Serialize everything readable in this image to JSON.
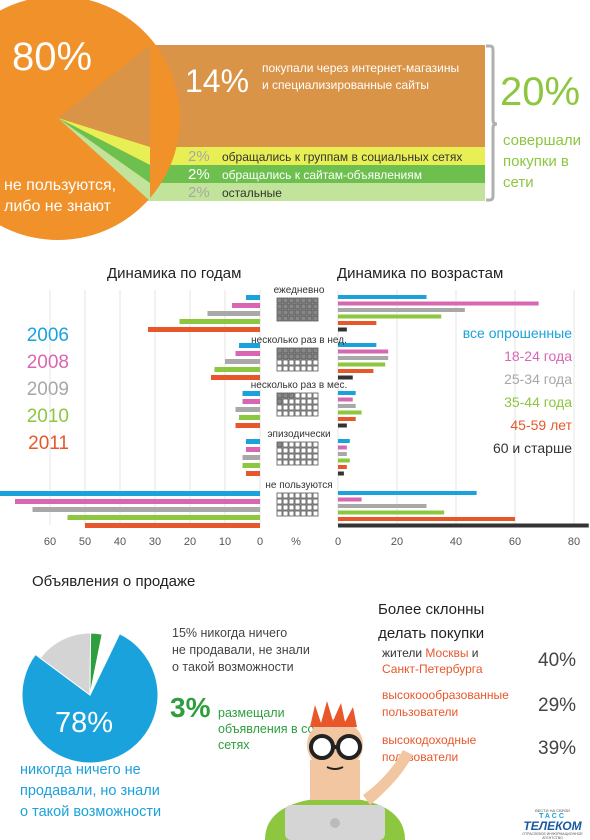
{
  "top": {
    "big_pct": "80%",
    "big_label": "не пользуются,\nлибо не знают",
    "shop_pct": "14%",
    "shop_label": "покупали через интернет-магазины\nи специализированные сайты",
    "rows": [
      {
        "pct": "2%",
        "label": "обращались к группам в социальных сетях"
      },
      {
        "pct": "2%",
        "label": "обращались к сайтам-объявлениям"
      },
      {
        "pct": "2%",
        "label": "остальные"
      }
    ],
    "sum_pct": "20%",
    "sum_label": "совершали\nпокупки в\nсети"
  },
  "dynamics": {
    "title_years": "Динамика по годам",
    "title_ages": "Динамика по возрастам",
    "years": [
      {
        "label": "2006",
        "color": "#1aa2dc"
      },
      {
        "label": "2008",
        "color": "#d867b3"
      },
      {
        "label": "2009",
        "color": "#a8a8a8"
      },
      {
        "label": "2010",
        "color": "#8dc63f"
      },
      {
        "label": "2011",
        "color": "#e8572a"
      }
    ],
    "ages": [
      {
        "label": "все опрошенные",
        "color": "#1aa2dc"
      },
      {
        "label": "18-24 года",
        "color": "#d867b3"
      },
      {
        "label": "25-34 года",
        "color": "#a8a8a8"
      },
      {
        "label": "35-44 года",
        "color": "#8dc63f"
      },
      {
        "label": "45-59 лет",
        "color": "#e8572a"
      },
      {
        "label": "60 и старше",
        "color": "#333333"
      }
    ],
    "center_unit": "%"
  },
  "ads": {
    "title": "Объявления о продаже",
    "big_pct": "78%",
    "big_label": "никогда ничего не\nпродавали, но знали\nо такой возможности",
    "gray_note": "15% никогда ничего\nне продавали, не знали\nо такой возможности",
    "green_pct": "3%",
    "green_label": "размещали\nобъявления в соц.\nсетях"
  },
  "likely": {
    "title": "Более склонны\nделать покупки",
    "r1_pre": "жители ",
    "r1_moscow": "Москвы",
    "r1_and": " и",
    "r1_spb": "Санкт-Петербурга",
    "r1_pct": "40%",
    "r2_label": "высокоообразованные\nпользователи",
    "r2_pct": "29%",
    "r3_label": "высокодоходные\nпользователи",
    "r3_pct": "39%"
  },
  "logo": {
    "top": "ВЕСТИ НА СВЯЗИ",
    "brand": "ТЕЛЕКОМ",
    "tag": "ТАСС",
    "sub": "ОТРАСЛЕВОЕ ИНФОРМАЦИОННОЕ АГЕНТСТВО"
  },
  "chart_data": {
    "type": "bar",
    "left": {
      "title": "Динамика по годам",
      "categories": [
        "ежедневно",
        "несколько раз в нед.",
        "несколько раз в мес.",
        "эпизодически",
        "не пользуются"
      ],
      "axis_ticks": [
        60,
        50,
        40,
        30,
        20,
        10,
        0
      ],
      "axis_label": "%",
      "xlim": [
        0,
        70
      ],
      "series": [
        {
          "name": "2006",
          "color": "#1aa2dc",
          "values": [
            4,
            6,
            5,
            4,
            75
          ]
        },
        {
          "name": "2008",
          "color": "#d867b3",
          "values": [
            8,
            7,
            5,
            4,
            70
          ]
        },
        {
          "name": "2009",
          "color": "#a8a8a8",
          "values": [
            15,
            10,
            7,
            5,
            65
          ]
        },
        {
          "name": "2010",
          "color": "#8dc63f",
          "values": [
            23,
            13,
            6,
            5,
            55
          ]
        },
        {
          "name": "2011",
          "color": "#e8572a",
          "values": [
            32,
            14,
            7,
            4,
            50
          ]
        }
      ]
    },
    "right": {
      "title": "Динамика по возрастам",
      "categories": [
        "ежедневно",
        "несколько раз в нед.",
        "несколько раз в мес.",
        "эпизодически",
        "не пользуются"
      ],
      "axis_ticks": [
        0,
        20,
        40,
        60,
        80
      ],
      "xlim": [
        0,
        80
      ],
      "series": [
        {
          "name": "все опрошенные",
          "color": "#1aa2dc",
          "values": [
            30,
            13,
            6,
            4,
            47
          ]
        },
        {
          "name": "18-24 года",
          "color": "#d867b3",
          "values": [
            68,
            17,
            5,
            3,
            8
          ]
        },
        {
          "name": "25-34 года",
          "color": "#a8a8a8",
          "values": [
            43,
            17,
            6,
            3,
            30
          ]
        },
        {
          "name": "35-44 года",
          "color": "#8dc63f",
          "values": [
            35,
            16,
            8,
            4,
            36
          ]
        },
        {
          "name": "45-59 лет",
          "color": "#e8572a",
          "values": [
            13,
            12,
            6,
            3,
            60
          ]
        },
        {
          "name": "60 и старше",
          "color": "#333333",
          "values": [
            3,
            5,
            3,
            2,
            85
          ]
        }
      ]
    },
    "pie_ads": {
      "type": "pie",
      "title": "Объявления о продаже",
      "slices": [
        {
          "value": 78,
          "color": "#1aa2dc"
        },
        {
          "value": 15,
          "color": "#d4d4d4"
        },
        {
          "value": 3,
          "color": "#2e9e3e"
        },
        {
          "value": 4,
          "color": "#ffffff"
        }
      ]
    },
    "top_pie": {
      "type": "pie",
      "slices": [
        {
          "value": 80,
          "color": "#f0912a"
        },
        {
          "value": 14,
          "color": "#d99448"
        },
        {
          "value": 2,
          "color": "#ecec4a"
        },
        {
          "value": 2,
          "color": "#6dc04e"
        },
        {
          "value": 2,
          "color": "#b9de8a"
        }
      ]
    }
  }
}
